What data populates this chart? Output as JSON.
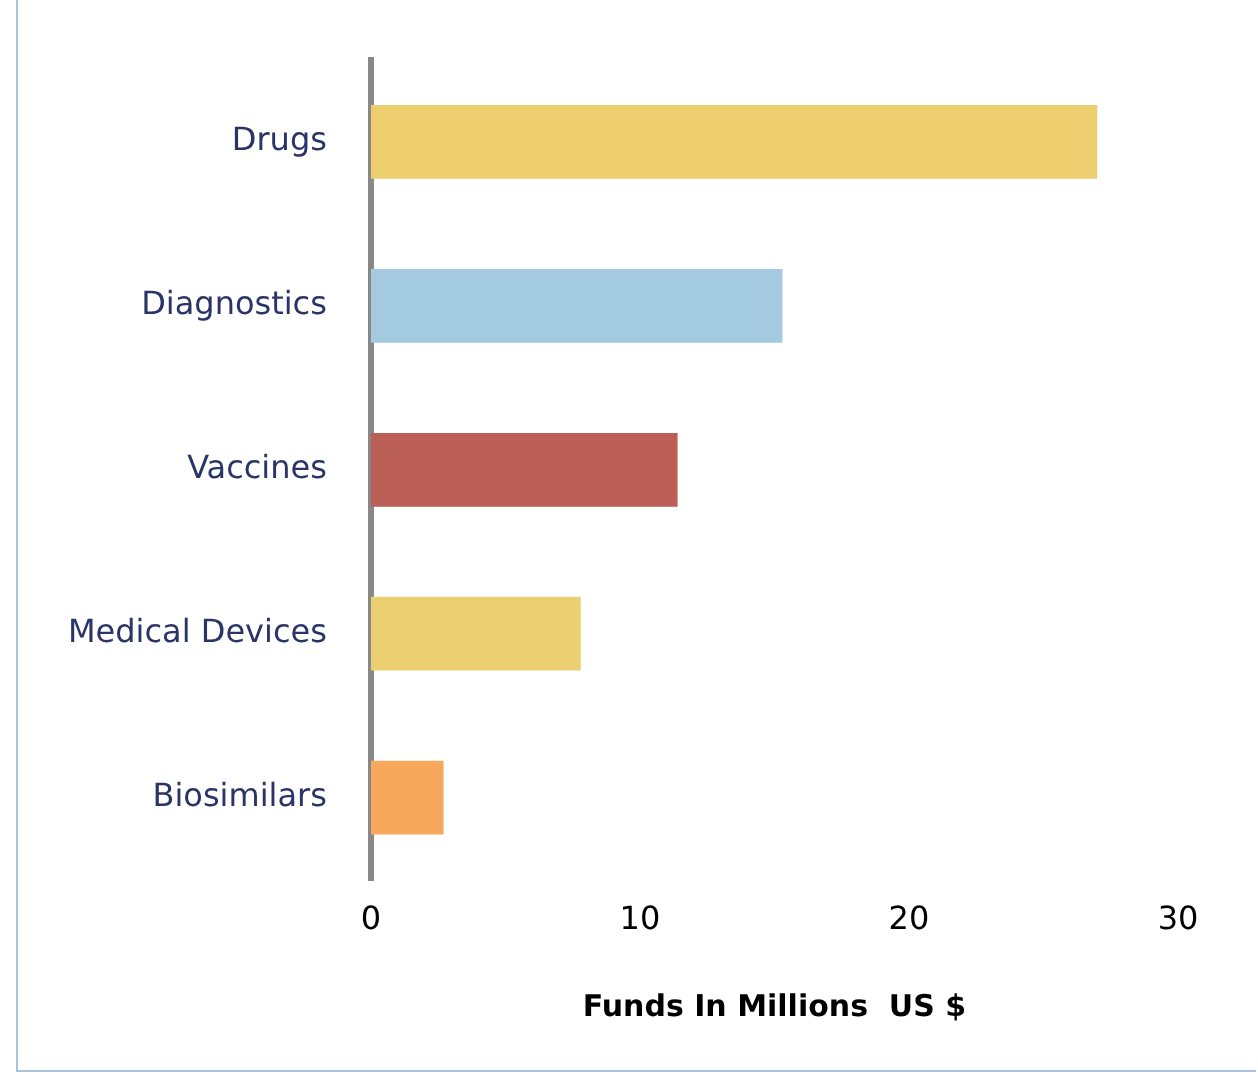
{
  "chart_data": {
    "type": "bar",
    "orientation": "horizontal",
    "xlabel": "Funds In Millions  US $",
    "categories": [
      "Drugs",
      "Diagnostics",
      "Vaccines",
      "Medical Devices",
      "Biosimilars"
    ],
    "values": [
      27,
      15.3,
      11.4,
      7.8,
      2.7
    ],
    "colors": [
      "#ecce6e",
      "#a3cadf",
      "#bb5e55",
      "#eccf70",
      "#f8a85c"
    ],
    "xlim": [
      0,
      30
    ],
    "xticks": [
      0,
      10,
      20,
      30
    ],
    "grid": false,
    "legend": false
  }
}
